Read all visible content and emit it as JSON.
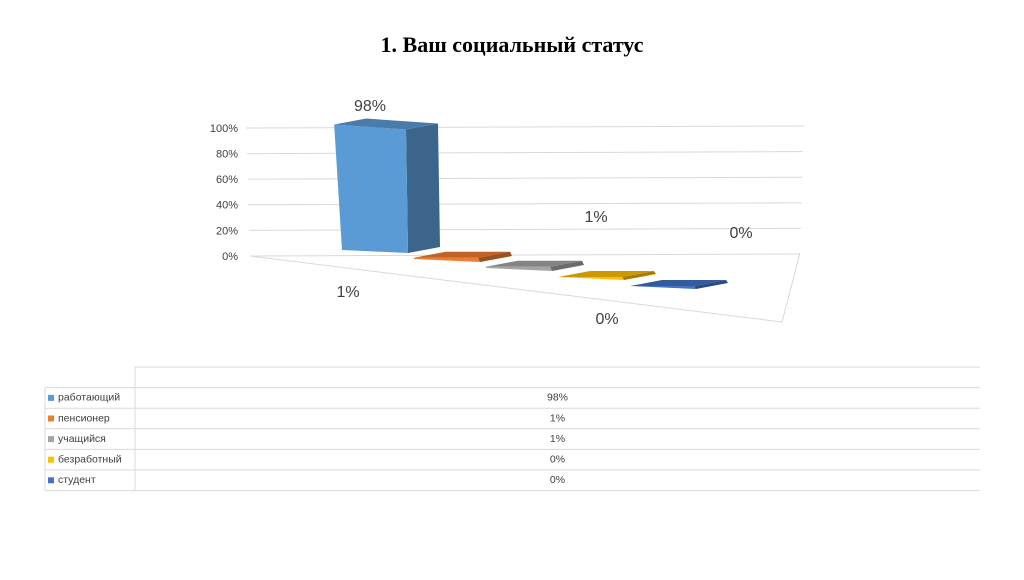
{
  "chart_data": {
    "type": "bar3d",
    "title": "1. Ваш социальный статус",
    "categories": [
      "работающий",
      "пенсионер",
      "учащийся",
      "безработный",
      "студент"
    ],
    "values": [
      98,
      1,
      1,
      0,
      0
    ],
    "value_labels": [
      "98%",
      "1%",
      "1%",
      "0%",
      "0%"
    ],
    "colors": [
      "#5b9bd5",
      "#ed7d31",
      "#a5a5a5",
      "#ffc000",
      "#4472c4"
    ],
    "ylim": [
      0,
      100
    ],
    "yticks": [
      {
        "value": 0,
        "label": "0%"
      },
      {
        "value": 20,
        "label": "20%"
      },
      {
        "value": 40,
        "label": "40%"
      },
      {
        "value": 60,
        "label": "60%"
      },
      {
        "value": 80,
        "label": "80%"
      },
      {
        "value": 100,
        "label": "100%"
      }
    ],
    "grid": true,
    "data_table": true
  }
}
